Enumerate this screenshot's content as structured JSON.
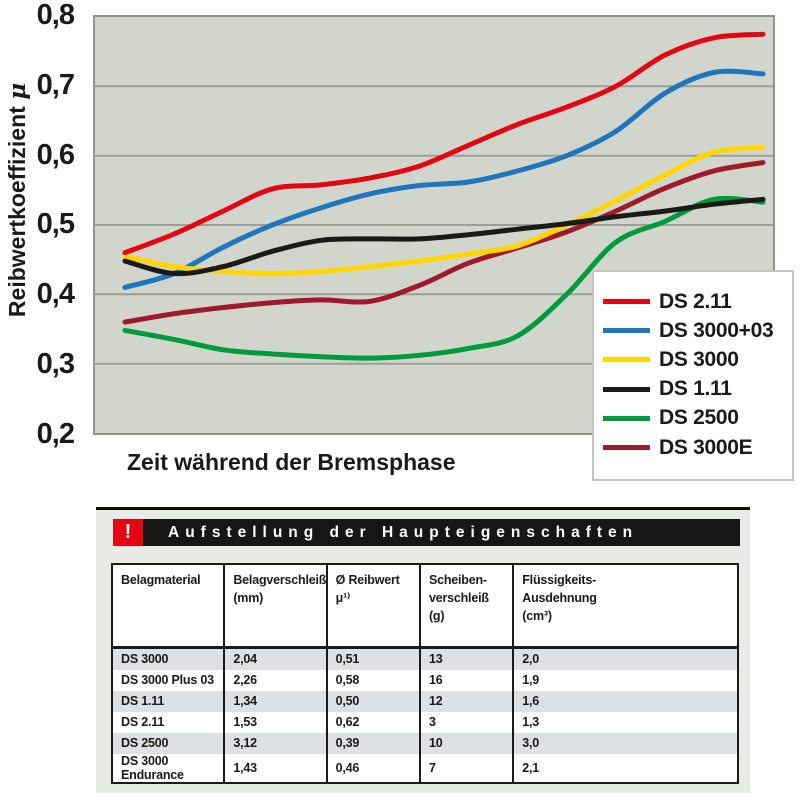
{
  "chart": {
    "y_axis_title": "Reibwertkoeffizient",
    "y_axis_symbol": "μ",
    "x_axis_title": "Zeit während der Bremsphase",
    "y_tick_labels": [
      "0,8",
      "0,7",
      "0,6",
      "0,5",
      "0,4",
      "0,3",
      "0,2"
    ]
  },
  "chart_data": {
    "type": "line",
    "title": "",
    "xlabel": "Zeit während der Bremsphase",
    "ylabel": "Reibwertkoeffizient μ",
    "ylim": [
      0.2,
      0.8
    ],
    "y_gridlines": [
      0.7,
      0.6,
      0.5,
      0.4,
      0.3
    ],
    "grid": "horizontal only, no x ticks or x tick labels",
    "legend_position": "overlay bottom-right",
    "x": [
      0,
      1,
      2,
      3,
      4,
      5,
      6,
      7,
      8,
      9,
      10,
      11,
      12,
      13
    ],
    "series": [
      {
        "name": "DS 2.11",
        "color": "#e30613",
        "values": [
          0.46,
          0.487,
          0.52,
          0.552,
          0.558,
          0.568,
          0.585,
          0.615,
          0.645,
          0.67,
          0.7,
          0.745,
          0.77,
          0.775
        ]
      },
      {
        "name": "DS 3000+03",
        "color": "#1e76bd",
        "values": [
          0.41,
          0.43,
          0.468,
          0.5,
          0.525,
          0.545,
          0.557,
          0.562,
          0.578,
          0.6,
          0.635,
          0.69,
          0.72,
          0.718
        ]
      },
      {
        "name": "DS 3000",
        "color": "#ffd500",
        "values": [
          0.455,
          0.44,
          0.433,
          0.43,
          0.433,
          0.44,
          0.448,
          0.458,
          0.47,
          0.5,
          0.535,
          0.572,
          0.605,
          0.612
        ]
      },
      {
        "name": "DS 1.11",
        "color": "#1a1a18",
        "values": [
          0.448,
          0.43,
          0.44,
          0.462,
          0.478,
          0.48,
          0.48,
          0.486,
          0.494,
          0.502,
          0.512,
          0.52,
          0.53,
          0.537
        ]
      },
      {
        "name": "DS 2500",
        "color": "#009b3c",
        "values": [
          0.348,
          0.335,
          0.32,
          0.314,
          0.31,
          0.308,
          0.312,
          0.322,
          0.34,
          0.4,
          0.475,
          0.505,
          0.537,
          0.533
        ]
      },
      {
        "name": "DS 3000E",
        "color": "#9e1a2c",
        "values": [
          0.36,
          0.372,
          0.381,
          0.388,
          0.392,
          0.39,
          0.413,
          0.445,
          0.467,
          0.49,
          0.52,
          0.553,
          0.578,
          0.59
        ]
      }
    ],
    "draw_order": [
      1,
      4,
      5,
      2,
      3,
      0
    ]
  },
  "table": {
    "warn_glyph": "!",
    "title": "Aufstellung der Haupteigenschaften",
    "columns": [
      "Belagmaterial",
      "Belagverschleiß\n(mm)",
      "Ø Reibwert μ¹⁾",
      "Scheiben-\nverschleiß\n(g)",
      "Flüssigkeits-\nAusdehnung\n(cm³)"
    ],
    "rows": [
      {
        "material": "DS 3000",
        "cells": [
          "2,04",
          "0,51",
          "13",
          "2,0"
        ]
      },
      {
        "material": "DS 3000 Plus 03",
        "cells": [
          "2,26",
          "0,58",
          "16",
          "1,9"
        ]
      },
      {
        "material": "DS 1.11",
        "cells": [
          "1,34",
          "0,50",
          "12",
          "1,6"
        ]
      },
      {
        "material": "DS 2.11",
        "cells": [
          "1,53",
          "0,62",
          "3",
          "1,3"
        ]
      },
      {
        "material": "DS 2500",
        "cells": [
          "3,12",
          "0,39",
          "10",
          "3,0"
        ]
      },
      {
        "material": "DS 3000 Endurance",
        "cells": [
          "1,43",
          "0,46",
          "7",
          "2,1"
        ]
      }
    ]
  },
  "colors": {
    "plot_bg": "#d2d5cc",
    "plot_border": "#90938a",
    "grid": "#9b9f96",
    "panel_bg": "#e9ebe6",
    "shaded_row": "#dde1e3",
    "title_bar": "#161614",
    "warn_red": "#e30613"
  }
}
